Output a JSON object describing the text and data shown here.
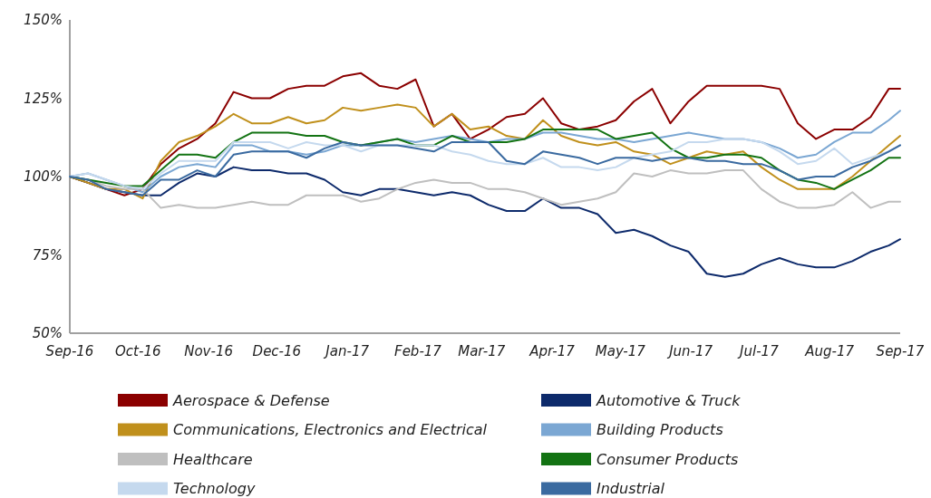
{
  "chart_data": {
    "type": "line",
    "x": [
      "2016-09-01",
      "2016-09-09",
      "2016-09-17",
      "2016-09-25",
      "2016-10-03",
      "2016-10-11",
      "2016-10-19",
      "2016-10-27",
      "2016-11-04",
      "2016-11-12",
      "2016-11-20",
      "2016-11-28",
      "2016-12-06",
      "2016-12-14",
      "2016-12-22",
      "2016-12-30",
      "2017-01-07",
      "2017-01-15",
      "2017-01-23",
      "2017-01-31",
      "2017-02-08",
      "2017-02-16",
      "2017-02-24",
      "2017-03-04",
      "2017-03-12",
      "2017-03-20",
      "2017-03-28",
      "2017-04-05",
      "2017-04-13",
      "2017-04-21",
      "2017-04-29",
      "2017-05-07",
      "2017-05-15",
      "2017-05-23",
      "2017-05-31",
      "2017-06-08",
      "2017-06-16",
      "2017-06-24",
      "2017-07-02",
      "2017-07-10",
      "2017-07-18",
      "2017-07-26",
      "2017-08-03",
      "2017-08-11",
      "2017-08-19",
      "2017-08-27",
      "2017-09-01"
    ],
    "series": [
      {
        "name": "Aerospace & Defense",
        "color": "#8b0000",
        "values": [
          100,
          98,
          96,
          94,
          96,
          104,
          109,
          112,
          117,
          127,
          125,
          125,
          128,
          129,
          129,
          132,
          133,
          129,
          128,
          131,
          116,
          120,
          112,
          115,
          119,
          120,
          125,
          117,
          115,
          116,
          118,
          124,
          128,
          117,
          124,
          129,
          129,
          129,
          129,
          128,
          117,
          112,
          115,
          115,
          119,
          128,
          128
        ]
      },
      {
        "name": "Automotive & Truck",
        "color": "#0d2a6b",
        "values": [
          100,
          98,
          96,
          95,
          94,
          94,
          98,
          101,
          100,
          103,
          102,
          102,
          101,
          101,
          99,
          95,
          94,
          96,
          96,
          95,
          94,
          95,
          94,
          91,
          89,
          89,
          93,
          90,
          90,
          88,
          82,
          83,
          81,
          78,
          76,
          69,
          68,
          69,
          72,
          74,
          72,
          71,
          71,
          73,
          76,
          78,
          80
        ]
      },
      {
        "name": "Communications, Electronics and Electrical",
        "color": "#c0901c",
        "values": [
          100,
          98,
          96,
          96,
          93,
          105,
          111,
          113,
          116,
          120,
          117,
          117,
          119,
          117,
          118,
          122,
          121,
          122,
          123,
          122,
          116,
          120,
          115,
          116,
          113,
          112,
          118,
          113,
          111,
          110,
          111,
          108,
          107,
          104,
          106,
          108,
          107,
          108,
          103,
          99,
          96,
          96,
          96,
          100,
          105,
          110,
          113
        ]
      },
      {
        "name": "Building Products",
        "color": "#7ba7d3",
        "values": [
          100,
          101,
          99,
          97,
          95,
          100,
          103,
          104,
          103,
          110,
          110,
          108,
          108,
          107,
          108,
          110,
          110,
          111,
          112,
          111,
          112,
          113,
          112,
          111,
          112,
          112,
          114,
          114,
          113,
          112,
          112,
          111,
          112,
          113,
          114,
          113,
          112,
          112,
          111,
          109,
          106,
          107,
          111,
          114,
          114,
          118,
          121
        ]
      },
      {
        "name": "Healthcare",
        "color": "#bfbfbf",
        "values": [
          100,
          99,
          97,
          96,
          96,
          90,
          91,
          90,
          90,
          91,
          92,
          91,
          91,
          94,
          94,
          94,
          92,
          93,
          96,
          98,
          99,
          98,
          98,
          96,
          96,
          95,
          93,
          91,
          92,
          93,
          95,
          101,
          100,
          102,
          101,
          101,
          102,
          102,
          96,
          92,
          90,
          90,
          91,
          95,
          90,
          92,
          92
        ]
      },
      {
        "name": "Consumer Products",
        "color": "#137313",
        "values": [
          100,
          99,
          98,
          97,
          97,
          102,
          107,
          107,
          106,
          111,
          114,
          114,
          114,
          113,
          113,
          111,
          110,
          111,
          112,
          110,
          110,
          113,
          111,
          111,
          111,
          112,
          115,
          115,
          115,
          115,
          112,
          113,
          114,
          109,
          106,
          106,
          107,
          107,
          106,
          102,
          99,
          98,
          96,
          99,
          102,
          106,
          106
        ]
      },
      {
        "name": "Technology",
        "color": "#c5d9ee",
        "values": [
          100,
          101,
          99,
          97,
          96,
          101,
          105,
          105,
          105,
          111,
          111,
          111,
          109,
          111,
          110,
          110,
          108,
          110,
          110,
          110,
          110,
          108,
          107,
          105,
          104,
          104,
          106,
          103,
          103,
          102,
          103,
          106,
          107,
          108,
          111,
          111,
          112,
          112,
          111,
          108,
          104,
          105,
          109,
          104,
          106,
          108,
          110
        ]
      },
      {
        "name": "Industrial",
        "color": "#3a6aa0",
        "values": [
          100,
          99,
          96,
          95,
          94,
          99,
          99,
          102,
          100,
          107,
          108,
          108,
          108,
          106,
          109,
          111,
          110,
          110,
          110,
          109,
          108,
          111,
          111,
          111,
          105,
          104,
          108,
          107,
          106,
          104,
          106,
          106,
          105,
          106,
          106,
          105,
          105,
          104,
          104,
          102,
          99,
          100,
          100,
          103,
          105,
          108,
          110
        ]
      }
    ],
    "xlim": [
      "2016-09-01",
      "2017-09-01"
    ],
    "xticks": [
      {
        "value": "2016-09-01",
        "label": "Sep-16"
      },
      {
        "value": "2016-10-01",
        "label": "Oct-16"
      },
      {
        "value": "2016-11-01",
        "label": "Nov-16"
      },
      {
        "value": "2016-12-01",
        "label": "Dec-16"
      },
      {
        "value": "2017-01-01",
        "label": "Jan-17"
      },
      {
        "value": "2017-02-01",
        "label": "Feb-17"
      },
      {
        "value": "2017-03-01",
        "label": "Mar-17"
      },
      {
        "value": "2017-04-01",
        "label": "Apr-17"
      },
      {
        "value": "2017-05-01",
        "label": "May-17"
      },
      {
        "value": "2017-06-01",
        "label": "Jun-17"
      },
      {
        "value": "2017-07-01",
        "label": "Jul-17"
      },
      {
        "value": "2017-08-01",
        "label": "Aug-17"
      },
      {
        "value": "2017-09-01",
        "label": "Sep-17"
      }
    ],
    "ylim": [
      50,
      150
    ],
    "yticks": [
      {
        "value": 50,
        "label": "50%"
      },
      {
        "value": 75,
        "label": "75%"
      },
      {
        "value": 100,
        "label": "100%"
      },
      {
        "value": 125,
        "label": "125%"
      },
      {
        "value": 150,
        "label": "150%"
      }
    ],
    "grid": false,
    "legend": "bottom",
    "marker": "none",
    "line_style": "solid"
  }
}
